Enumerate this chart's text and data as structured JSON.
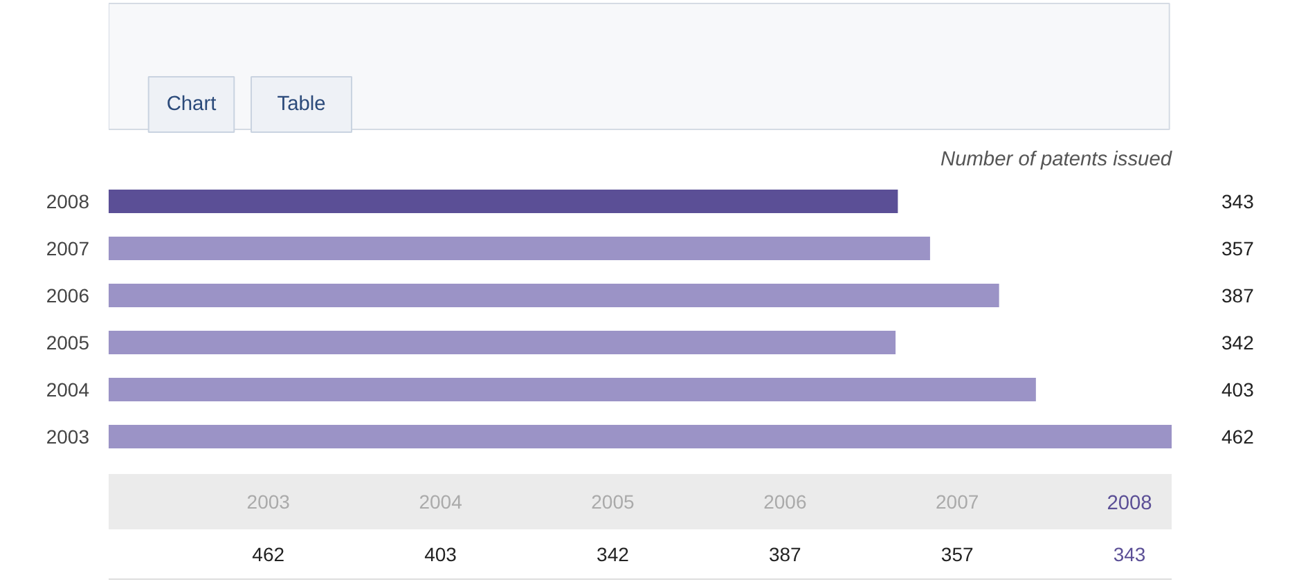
{
  "chart_data": {
    "type": "bar",
    "orientation": "horizontal",
    "title": "Number of patents issued",
    "annotations": [
      "Chart",
      "Table",
      "462",
      "403",
      "342",
      "387",
      "357",
      "343"
    ],
    "categories": [
      "2008",
      "2007",
      "2006",
      "2005",
      "2004",
      "2003"
    ],
    "values": [
      343,
      357,
      387,
      342,
      403,
      462
    ],
    "colors": [
      "#5b4f96",
      "#9b93c6",
      "#9b93c6",
      "#9b93c6",
      "#9b93c6",
      "#9b93c6"
    ],
    "data_labels": true,
    "tick_labels": "y"
  }
}
